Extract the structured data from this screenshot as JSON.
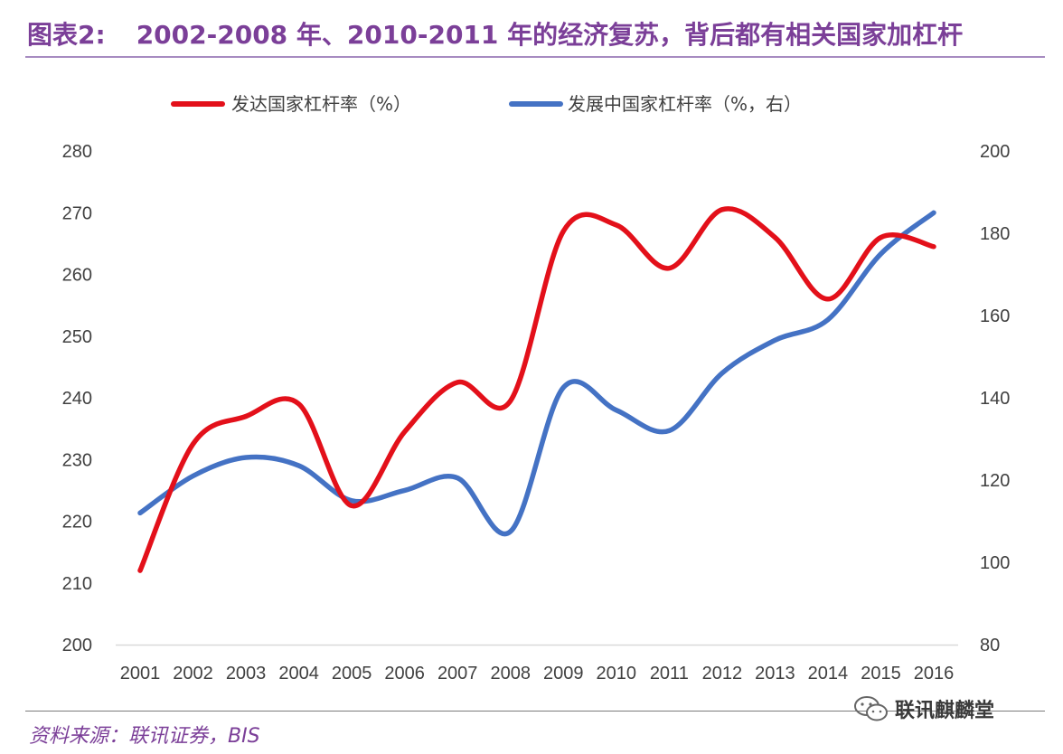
{
  "figure": {
    "title_prefix": "图表2:",
    "title": "2002-2008 年、2010-2011 年的经济复苏，背后都有相关国家加杠杆",
    "source": "资料来源：联讯证券，BIS",
    "watermark": "联讯麒麟堂"
  },
  "colors": {
    "title": "#7b3f98",
    "developed": "#e3101a",
    "developing": "#4472c4",
    "axis": "#d9d9d9",
    "text": "#404040"
  },
  "chart_data": {
    "type": "line",
    "categories": [
      "2001",
      "2002",
      "2003",
      "2004",
      "2005",
      "2006",
      "2007",
      "2008",
      "2009",
      "2010",
      "2011",
      "2012",
      "2013",
      "2014",
      "2015",
      "2016"
    ],
    "y_left": {
      "lim": [
        200,
        280
      ],
      "ticks": [
        200,
        210,
        220,
        230,
        240,
        250,
        260,
        270,
        280
      ]
    },
    "y_right": {
      "lim": [
        80,
        200
      ],
      "ticks": [
        80,
        100,
        120,
        140,
        160,
        180,
        200
      ]
    },
    "grid": false,
    "legend_position": "top",
    "series": [
      {
        "name": "发达国家杠杆率（%）",
        "axis": "left",
        "values": [
          212.0,
          232.5,
          237.0,
          239.0,
          222.5,
          234.5,
          242.5,
          239.5,
          267.0,
          268.0,
          261.0,
          270.5,
          266.0,
          256.0,
          266.0,
          264.5
        ]
      },
      {
        "name": "发展中国家杠杆率（%，右）",
        "axis": "right",
        "values": [
          112.0,
          121.0,
          125.5,
          123.5,
          115.0,
          117.5,
          120.5,
          107.5,
          142.5,
          137.0,
          132.0,
          146.0,
          154.0,
          159.0,
          175.0,
          185.0
        ]
      }
    ]
  }
}
